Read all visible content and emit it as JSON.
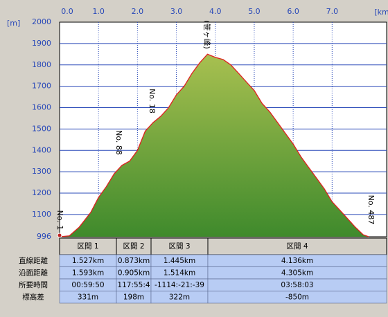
{
  "chart_data": {
    "type": "area",
    "x_unit": "[km]",
    "y_unit": "[m]",
    "x": [
      0,
      0.25,
      0.5,
      0.8,
      1.0,
      1.2,
      1.4,
      1.6,
      1.8,
      2.0,
      2.2,
      2.4,
      2.6,
      2.8,
      3.0,
      3.2,
      3.4,
      3.6,
      3.8,
      4.0,
      4.2,
      4.4,
      4.6,
      4.8,
      5.0,
      5.2,
      5.4,
      5.6,
      5.8,
      6.0,
      6.2,
      6.4,
      6.6,
      6.8,
      7.0,
      7.2,
      7.4,
      7.6,
      7.8,
      7.94
    ],
    "values": [
      996,
      1000,
      1040,
      1110,
      1180,
      1230,
      1290,
      1330,
      1350,
      1400,
      1490,
      1530,
      1560,
      1600,
      1660,
      1700,
      1760,
      1810,
      1850,
      1835,
      1825,
      1800,
      1760,
      1720,
      1680,
      1620,
      1580,
      1530,
      1480,
      1430,
      1370,
      1320,
      1270,
      1220,
      1160,
      1120,
      1080,
      1040,
      1005,
      996
    ],
    "color": "#e02020",
    "xlim": [
      0,
      8.4
    ],
    "xticks": [
      {
        "value": 0,
        "label": "0.0"
      },
      {
        "value": 1,
        "label": "1.0"
      },
      {
        "value": 2,
        "label": "2.0"
      },
      {
        "value": 3,
        "label": "3.0"
      },
      {
        "value": 4,
        "label": "4.0"
      },
      {
        "value": 5,
        "label": "5.0"
      },
      {
        "value": 6,
        "label": "6.0"
      },
      {
        "value": 7,
        "label": "7.0"
      }
    ],
    "ylim": [
      996,
      2000
    ],
    "yticks": [
      996,
      1100,
      1200,
      1300,
      1400,
      1500,
      1600,
      1700,
      1800,
      1900,
      2000
    ],
    "grid": true,
    "annotations": [
      "No. 1",
      "No. 88",
      "No. 18",
      "(笹ヶ峰)",
      "No. 487"
    ]
  },
  "table": {
    "headers": [
      "区間 1",
      "区間 2",
      "区間 3",
      "区間 4"
    ],
    "rows": [
      {
        "label": "直線距離",
        "cells": [
          "1.527km",
          "0.873km",
          "1.445km",
          "4.136km"
        ]
      },
      {
        "label": "沿面距離",
        "cells": [
          "1.593km",
          "0.905km",
          "1.514km",
          "4.305km"
        ]
      },
      {
        "label": "所要時間",
        "cells": [
          "00:59:50",
          "117:55:4",
          "-1114:-21:-39",
          "03:58:03"
        ]
      },
      {
        "label": "標高差",
        "cells": [
          "331m",
          "198m",
          "322m",
          "-850m"
        ]
      }
    ]
  }
}
